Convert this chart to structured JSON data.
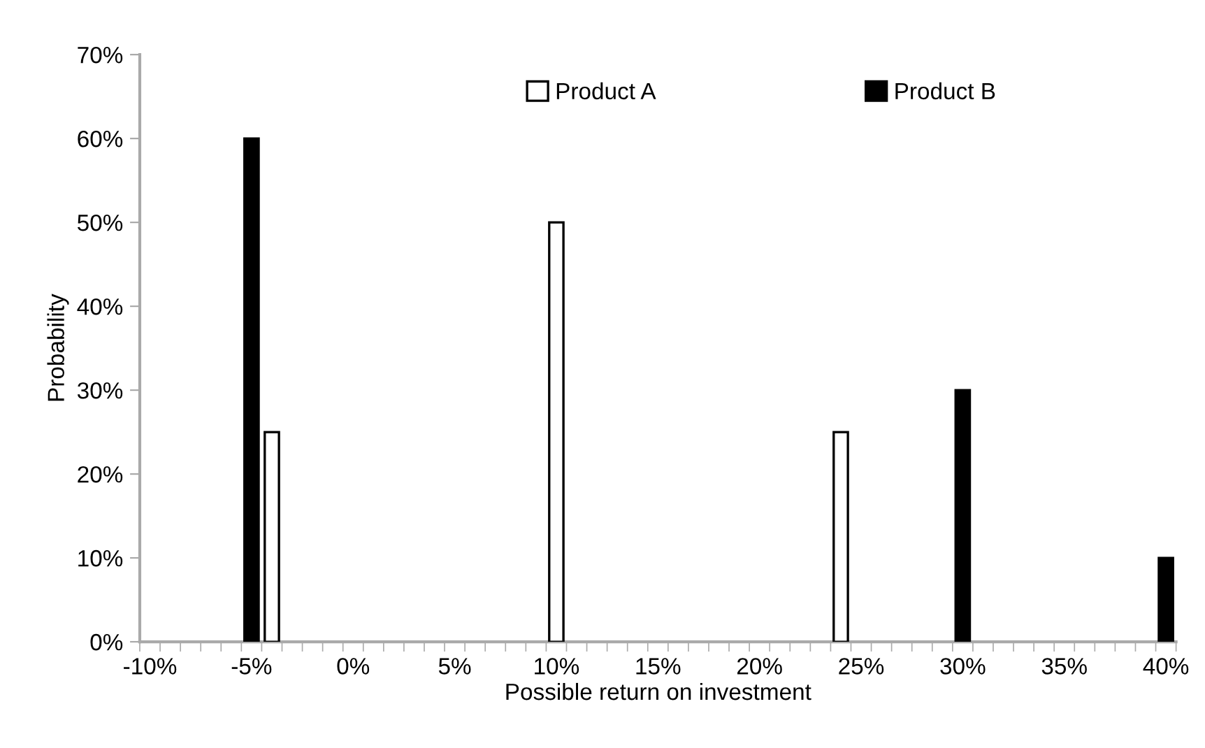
{
  "chart_data": {
    "type": "bar",
    "xlabel": "Possible return on investment",
    "ylabel": "Probability",
    "categories": [
      "-10%",
      null,
      null,
      null,
      null,
      "-5%",
      null,
      null,
      null,
      null,
      "0%",
      null,
      null,
      null,
      null,
      "5%",
      null,
      null,
      null,
      null,
      "10%",
      null,
      null,
      null,
      null,
      "15%",
      null,
      null,
      null,
      null,
      "20%",
      null,
      null,
      null,
      null,
      "25%",
      null,
      null,
      null,
      null,
      "30%",
      null,
      null,
      null,
      null,
      "35%",
      null,
      null,
      null,
      null,
      "40%"
    ],
    "series": [
      {
        "name": "Product A",
        "color": "#ffffff",
        "values": [
          null,
          null,
          null,
          null,
          null,
          null,
          25,
          null,
          null,
          null,
          null,
          null,
          null,
          null,
          null,
          null,
          null,
          null,
          null,
          null,
          50,
          null,
          null,
          null,
          null,
          null,
          null,
          null,
          null,
          null,
          null,
          null,
          null,
          null,
          25,
          null,
          null,
          null,
          null,
          null,
          null,
          null,
          null,
          null,
          null,
          null,
          null,
          null,
          null,
          null,
          null
        ]
      },
      {
        "name": "Product B",
        "color": "#000000",
        "values": [
          null,
          null,
          null,
          null,
          null,
          60,
          null,
          null,
          null,
          null,
          null,
          null,
          null,
          null,
          null,
          null,
          null,
          null,
          null,
          null,
          null,
          null,
          null,
          null,
          null,
          null,
          null,
          null,
          null,
          null,
          null,
          null,
          null,
          null,
          null,
          null,
          null,
          null,
          null,
          null,
          30,
          null,
          null,
          null,
          null,
          null,
          null,
          null,
          null,
          null,
          10
        ]
      }
    ],
    "ylim": [
      0,
      70
    ],
    "yticks": [
      {
        "value": 0,
        "label": "0%"
      },
      {
        "value": 10,
        "label": "10%"
      },
      {
        "value": 20,
        "label": "20%"
      },
      {
        "value": 30,
        "label": "30%"
      },
      {
        "value": 40,
        "label": "40%"
      },
      {
        "value": 50,
        "label": "50%"
      },
      {
        "value": 60,
        "label": "60%"
      },
      {
        "value": 70,
        "label": "70%"
      }
    ],
    "grid": false,
    "legend": "top"
  }
}
